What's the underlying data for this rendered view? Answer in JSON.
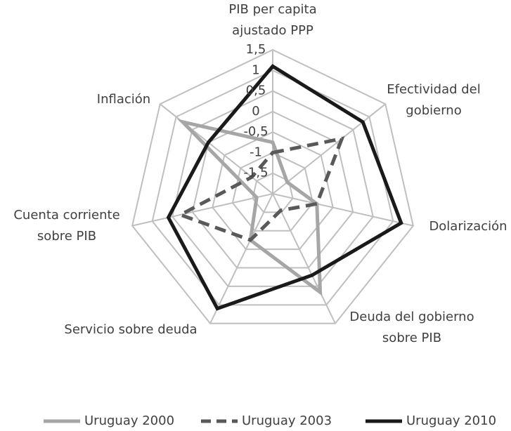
{
  "chart_data": {
    "type": "radar",
    "categories": [
      [
        "PIB per capita",
        "ajustado PPP"
      ],
      [
        "Efectividad del",
        "gobierno"
      ],
      [
        "Dolarización"
      ],
      [
        "Deuda del gobierno",
        "sobre PIB"
      ],
      [
        "Servicio sobre deuda"
      ],
      [
        "Cuenta corriente",
        "sobre PIB"
      ],
      [
        "Inflación"
      ]
    ],
    "rlim": [
      -2,
      1.5
    ],
    "rticks": [
      {
        "value": -1.5,
        "label": "-1,5"
      },
      -1,
      {
        "value": -0.5,
        "label": "-0,5"
      },
      0,
      {
        "value": 0.5,
        "label": "0,5"
      },
      1,
      {
        "value": 1.5,
        "label": "1,5"
      }
    ],
    "grid": true,
    "legend": "bottom",
    "series": [
      {
        "name": "Uruguay 2000",
        "color": "#a6a6a6",
        "dash": "solid",
        "values": [
          -0.75,
          -1.55,
          -0.9,
          0.66,
          -0.75,
          -1.6,
          0.8
        ]
      },
      {
        "name": "Uruguay 2003",
        "color": "#595959",
        "dash": "dashed",
        "values": [
          -1.0,
          0.15,
          -0.9,
          -1.55,
          -0.75,
          0.3,
          -1.35
        ]
      },
      {
        "name": "Uruguay 2010",
        "color": "#1a1a1a",
        "dash": "solid",
        "values": [
          1.1,
          0.8,
          1.2,
          0.2,
          1.1,
          0.6,
          0.0
        ]
      }
    ]
  }
}
